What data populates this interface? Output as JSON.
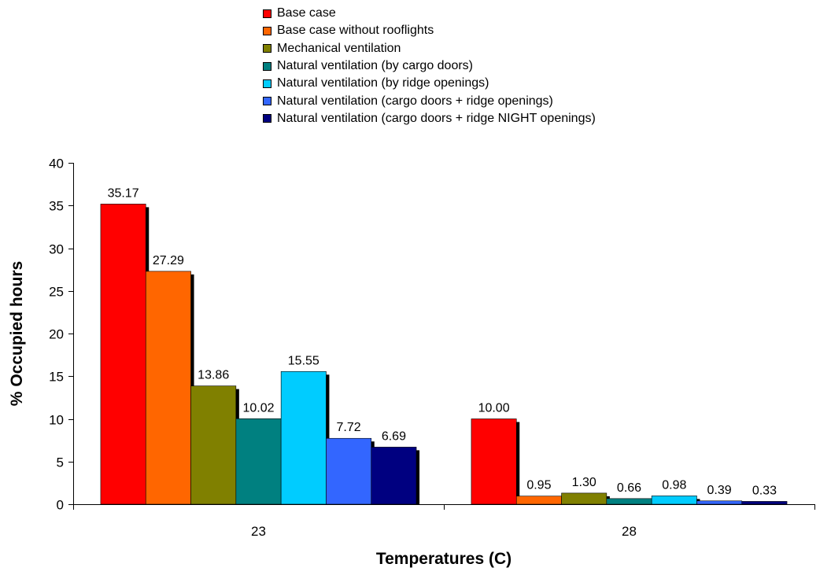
{
  "chart_data": {
    "type": "bar",
    "title": "",
    "xlabel": "Temperatures (C)",
    "ylabel": "% Occupied hours",
    "ylim": [
      0,
      40
    ],
    "yticks": [
      0,
      5,
      10,
      15,
      20,
      25,
      30,
      35,
      40
    ],
    "categories": [
      "23",
      "28"
    ],
    "legend_position": "top-center",
    "grid": false,
    "series": [
      {
        "name": "Base case",
        "color": "#ff0000",
        "values": [
          35.17,
          10.0
        ],
        "labels": [
          "35.17",
          "10.00"
        ]
      },
      {
        "name": "Base case without rooflights",
        "color": "#ff6600",
        "values": [
          27.29,
          0.95
        ],
        "labels": [
          "27.29",
          "0.95"
        ]
      },
      {
        "name": "Mechanical ventilation",
        "color": "#808000",
        "values": [
          13.86,
          1.3
        ],
        "labels": [
          "13.86",
          "1.30"
        ]
      },
      {
        "name": "Natural ventilation (by cargo doors)",
        "color": "#008080",
        "values": [
          10.02,
          0.66
        ],
        "labels": [
          "10.02",
          "0.66"
        ]
      },
      {
        "name": "Natural ventilation (by ridge openings)",
        "color": "#00ccff",
        "values": [
          15.55,
          0.98
        ],
        "labels": [
          "15.55",
          "0.98"
        ]
      },
      {
        "name": "Natural ventilation (cargo doors + ridge openings)",
        "color": "#3366ff",
        "values": [
          7.72,
          0.39
        ],
        "labels": [
          "7.72",
          "0.39"
        ]
      },
      {
        "name": "Natural ventilation (cargo doors + ridge NIGHT openings)",
        "color": "#000080",
        "values": [
          6.69,
          0.33
        ],
        "labels": [
          "6.69",
          "0.33"
        ]
      }
    ]
  }
}
